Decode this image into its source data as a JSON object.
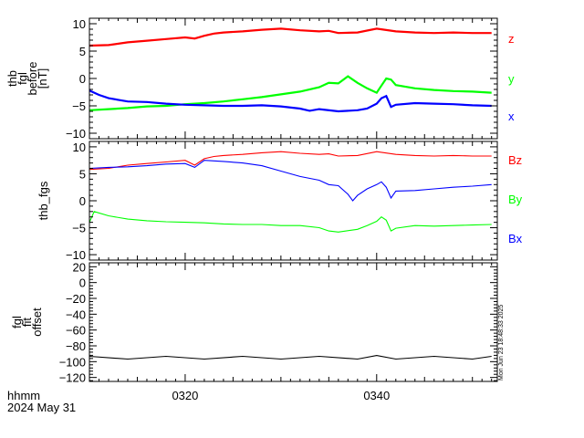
{
  "chart_data": [
    {
      "type": "line",
      "ylabel_lines": [
        "thb",
        "fgl",
        "before",
        "[nT]"
      ],
      "ylim": [
        -11,
        11
      ],
      "yticks": [
        10,
        5,
        0,
        -5,
        -10
      ],
      "xlim": [
        190,
        232.6
      ],
      "series": [
        {
          "name": "z",
          "color": "#ff0000",
          "x": [
            190,
            192,
            194,
            196,
            198,
            200,
            201,
            202,
            203,
            204,
            206,
            208,
            210,
            212,
            214,
            215,
            216,
            218,
            220,
            222,
            224,
            226,
            228,
            230,
            231,
            232
          ],
          "y": [
            6,
            6.1,
            6.6,
            6.9,
            7.2,
            7.5,
            7.3,
            7.8,
            8.2,
            8.4,
            8.6,
            8.9,
            9.1,
            8.8,
            8.6,
            8.7,
            8.3,
            8.4,
            9.1,
            8.6,
            8.4,
            8.3,
            8.4,
            8.3,
            8.3,
            8.3
          ]
        },
        {
          "name": "y",
          "color": "#00ff00",
          "x": [
            190,
            192,
            194,
            196,
            198,
            200,
            202,
            204,
            206,
            208,
            210,
            212,
            214,
            215,
            216,
            217,
            218,
            219,
            220,
            220.5,
            221,
            221.5,
            222,
            224,
            226,
            228,
            230,
            232
          ],
          "y": [
            -5.8,
            -5.6,
            -5.4,
            -5.1,
            -5,
            -4.7,
            -4.5,
            -4.2,
            -3.8,
            -3.4,
            -2.9,
            -2.4,
            -1.6,
            -0.8,
            -0.9,
            0.4,
            -0.8,
            -1.8,
            -2.6,
            -1.3,
            0,
            -0.2,
            -1.2,
            -1.8,
            -2.1,
            -2.3,
            -2.4,
            -2.6
          ]
        },
        {
          "name": "x",
          "color": "#0000ff",
          "x": [
            190,
            191,
            192,
            193,
            194,
            196,
            198,
            200,
            202,
            204,
            206,
            208,
            210,
            212,
            213,
            214,
            216,
            218,
            219,
            220,
            220.5,
            221,
            221.5,
            222,
            224,
            226,
            228,
            230,
            232
          ],
          "y": [
            -2.2,
            -3,
            -3.6,
            -3.9,
            -4.2,
            -4.3,
            -4.6,
            -4.8,
            -4.9,
            -5,
            -5,
            -4.9,
            -5.1,
            -5.5,
            -5.9,
            -5.6,
            -6,
            -5.8,
            -5.5,
            -4.6,
            -3.6,
            -3.2,
            -5.2,
            -4.8,
            -4.5,
            -4.6,
            -4.7,
            -4.9,
            -5
          ]
        }
      ],
      "legend": [
        "z",
        "y",
        "x"
      ],
      "legend_placement": "right"
    },
    {
      "type": "line",
      "ylabel_lines": [
        "thb_fgs"
      ],
      "ylim": [
        -11,
        11
      ],
      "yticks": [
        10,
        5,
        0,
        -5,
        -10
      ],
      "xlim": [
        190,
        232.6
      ],
      "series": [
        {
          "name": "Bz",
          "color": "#ff0000",
          "x": [
            190,
            192,
            194,
            196,
            198,
            200,
            201,
            202,
            203,
            204,
            206,
            208,
            210,
            212,
            214,
            215,
            216,
            218,
            220,
            222,
            224,
            226,
            228,
            230,
            232
          ],
          "y": [
            5.8,
            6,
            6.6,
            6.9,
            7.2,
            7.5,
            6.6,
            7.8,
            8.2,
            8.4,
            8.6,
            8.9,
            9.1,
            8.8,
            8.6,
            8.7,
            8.3,
            8.4,
            9.1,
            8.6,
            8.4,
            8.3,
            8.4,
            8.3,
            8.3
          ]
        },
        {
          "name": "By",
          "color": "#0000ff",
          "x": [
            190,
            192,
            194,
            196,
            198,
            200,
            201,
            202,
            204,
            206,
            208,
            210,
            212,
            214,
            215,
            216,
            217,
            217.5,
            218,
            219,
            220,
            220.5,
            221,
            221.5,
            222,
            224,
            226,
            228,
            230,
            232
          ],
          "y": [
            6,
            6.2,
            6.3,
            6.5,
            6.8,
            6.9,
            6.2,
            7.5,
            7.3,
            7,
            6.5,
            5.5,
            4.5,
            3.8,
            3,
            2.8,
            1.2,
            0,
            1,
            2.2,
            3,
            3.5,
            2.5,
            0.5,
            1.8,
            1.9,
            2.2,
            2.5,
            2.7,
            3
          ]
        },
        {
          "name": "Bx",
          "color": "#00ff00",
          "x": [
            190,
            190.5,
            192,
            194,
            196,
            198,
            200,
            202,
            204,
            206,
            208,
            210,
            212,
            214,
            215,
            216,
            218,
            219,
            220,
            220.5,
            221,
            221.5,
            222,
            224,
            226,
            228,
            230,
            232
          ],
          "y": [
            -4,
            -2,
            -2.8,
            -3.4,
            -3.7,
            -3.9,
            -4,
            -4.1,
            -4.3,
            -4.4,
            -4.4,
            -4.6,
            -4.6,
            -5,
            -5.6,
            -5.8,
            -5.3,
            -4.6,
            -3.8,
            -3,
            -3.6,
            -5.6,
            -5.1,
            -4.6,
            -4.7,
            -4.6,
            -4.5,
            -4.4
          ]
        }
      ],
      "legend": [
        "Bz",
        "By",
        "Bx"
      ],
      "legend_placement": "right"
    },
    {
      "type": "line",
      "ylabel_lines": [
        "fgl",
        "fit",
        "offset"
      ],
      "ylim": [
        -125,
        25
      ],
      "yticks": [
        20,
        0,
        -20,
        -40,
        -60,
        -80,
        -100,
        -120
      ],
      "xlim": [
        190,
        232.6
      ],
      "series": [
        {
          "name": "offset",
          "color": "#000000",
          "x": [
            190,
            194,
            198,
            202,
            206,
            210,
            214,
            218,
            220,
            222,
            226,
            230,
            232
          ],
          "y": [
            -95,
            -95,
            -95,
            -95,
            -95,
            -95,
            -95,
            -95,
            -94,
            -95,
            -95,
            -95,
            -95
          ]
        }
      ]
    }
  ],
  "xaxis": {
    "tick_minutes": [
      200,
      220
    ],
    "tick_labels": [
      "0320",
      "0340"
    ],
    "label": "hhmm",
    "date": "2024 May 31"
  },
  "timestamp": "Mon Jun 23 18:48:33 2025"
}
